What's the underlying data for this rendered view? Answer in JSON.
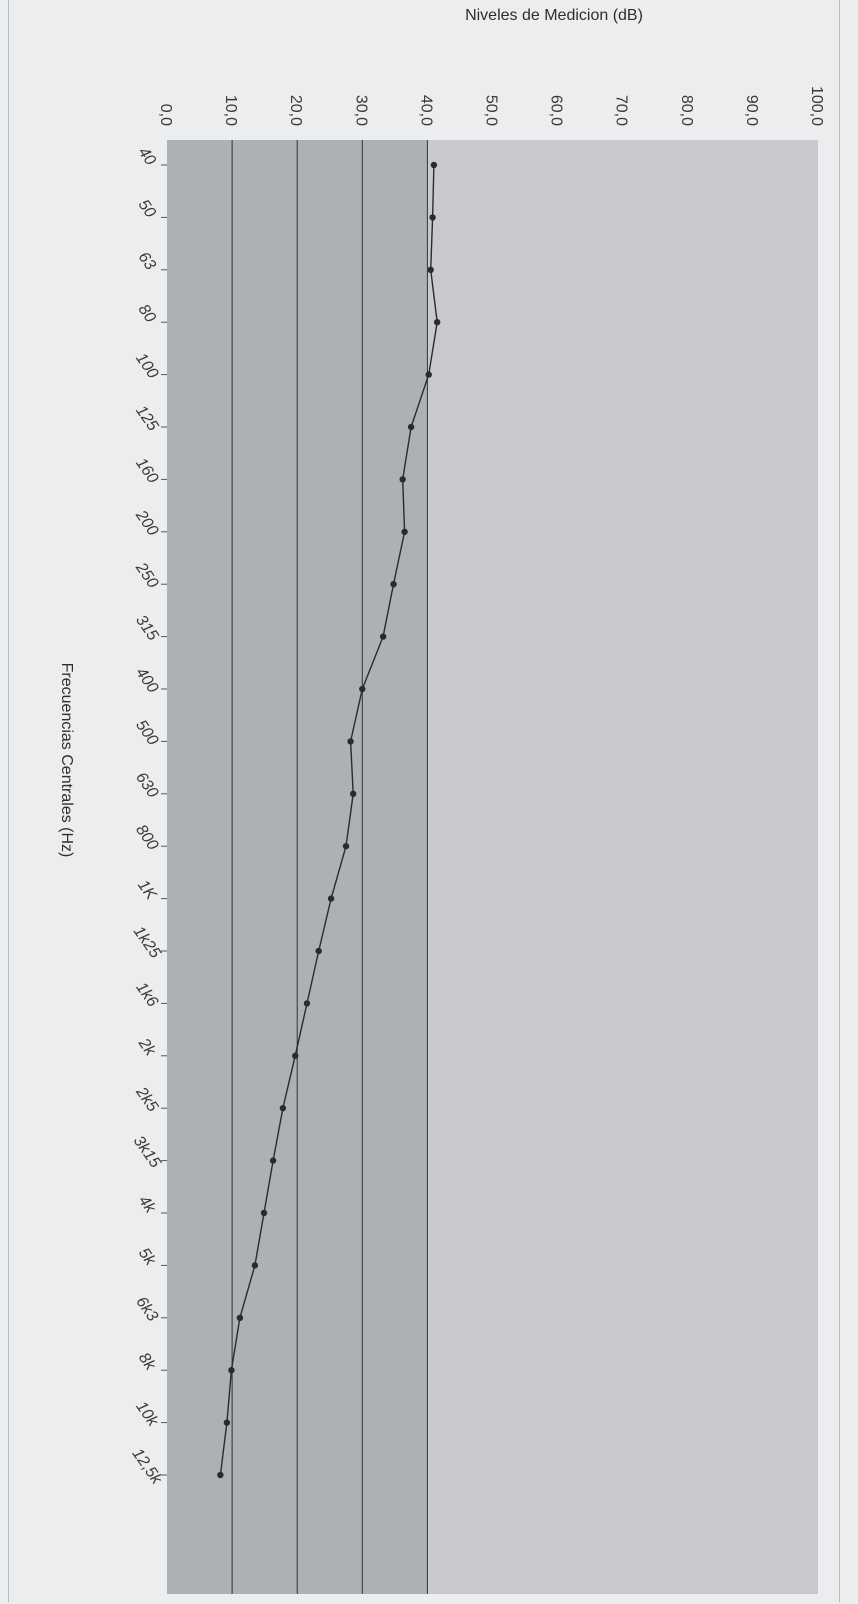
{
  "chart_data": {
    "type": "line",
    "title": "",
    "ylabel": "Niveles de Medicion (dB)",
    "xlabel": "Frecuencias Centrales (Hz)",
    "ylim": [
      0,
      100
    ],
    "y_ticks": [
      "0,0",
      "10,0",
      "20,0",
      "30,0",
      "40,0",
      "50,0",
      "60,0",
      "70,0",
      "80,0",
      "90,0",
      "100,0"
    ],
    "grid": true,
    "orientation": "rotated 90 degrees clockwise",
    "categories": [
      "40",
      "50",
      "63",
      "80",
      "100",
      "125",
      "160",
      "200",
      "250",
      "315",
      "400",
      "500",
      "630",
      "800",
      "1K",
      "1k25",
      "1k6",
      "2k",
      "2k5",
      "3k15",
      "4k",
      "5k",
      "6k3",
      "8k",
      "10k",
      "12,5k"
    ],
    "series": [
      {
        "name": "",
        "values": [
          41.0,
          40.8,
          40.5,
          41.5,
          40.2,
          37.5,
          36.2,
          36.5,
          34.8,
          33.2,
          30.0,
          28.2,
          28.6,
          27.5,
          25.2,
          23.3,
          21.5,
          19.7,
          17.8,
          16.3,
          14.9,
          13.5,
          11.2,
          9.9,
          9.2,
          8.2
        ],
        "color": "#2b2b2b"
      }
    ],
    "colors": {
      "plot_fill": "#c7c9cc",
      "plot_dark_fill": "#adb0b4",
      "gridline": "#333333",
      "line": "#2b2b2b"
    }
  }
}
